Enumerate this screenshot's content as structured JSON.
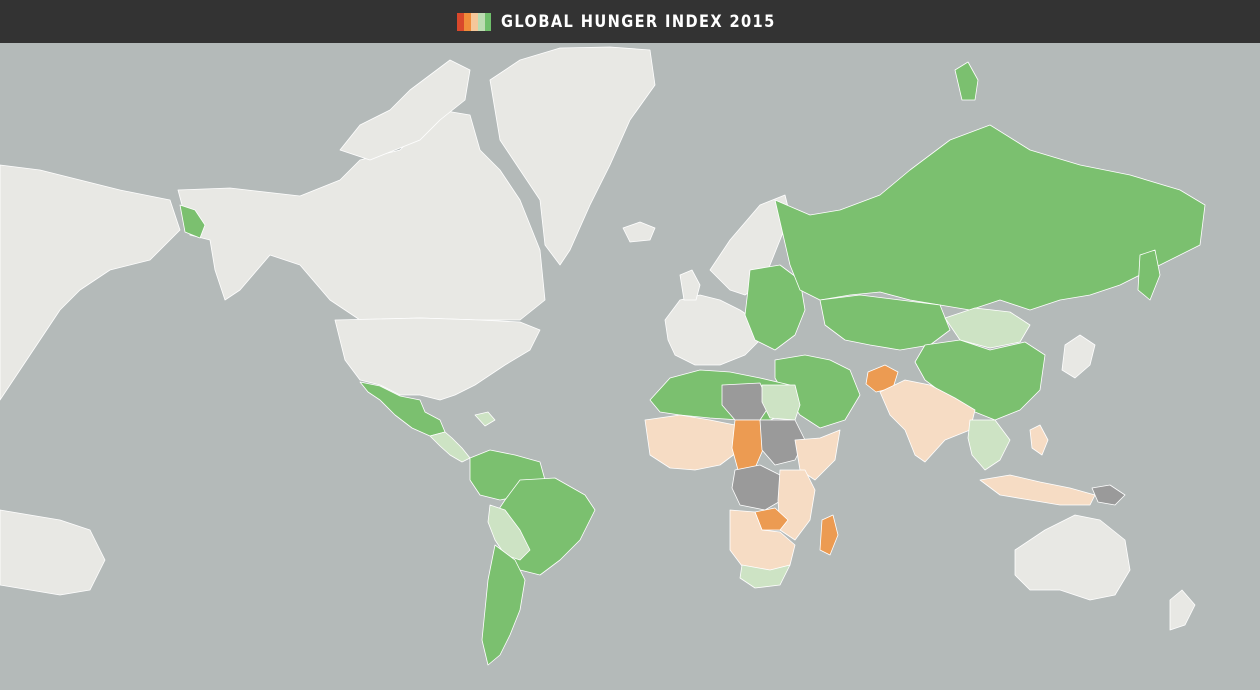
{
  "header": {
    "title": "GLOBAL HUNGER INDEX 2015",
    "logo_colors": [
      "#d9482b",
      "#f08c3a",
      "#f5c79a",
      "#bcdcb2",
      "#6fbf6b"
    ]
  },
  "map": {
    "ocean_color": "#b4bab9",
    "legend_colors": {
      "no_data_developed": "#e8e8e4",
      "low": "#7bc06f",
      "moderate": "#cde3c4",
      "serious": "#f6dcc4",
      "alarming": "#ec9b52",
      "extremely_alarming": "#d9482b",
      "insufficient_data": "#9a9a9a"
    }
  }
}
